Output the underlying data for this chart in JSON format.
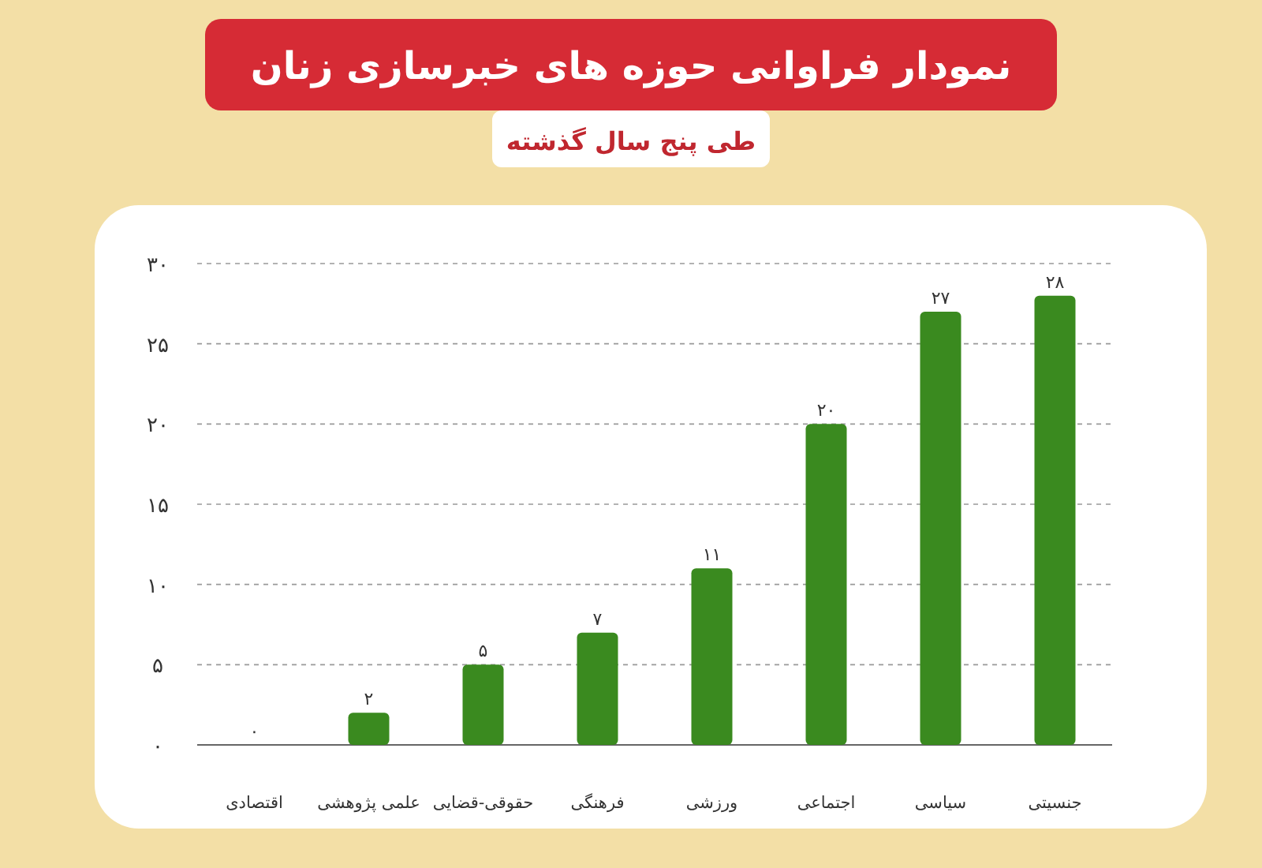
{
  "chart_data": {
    "type": "bar",
    "title": "نمودار فراوانی حوزه های خبرسازی زنان",
    "subtitle": "طی پنج سال گذشته",
    "categories": [
      "اقتصادی",
      "علمی پژوهشی",
      "حقوقی-قضایی",
      "فرهنگی",
      "ورزشی",
      "اجتماعی",
      "سیاسی",
      "جنسیتی"
    ],
    "values": [
      0,
      2,
      5,
      7,
      11,
      20,
      27,
      28
    ],
    "value_labels": [
      "۰",
      "۲",
      "۵",
      "۷",
      "۱۱",
      "۲۰",
      "۲۷",
      "۲۸"
    ],
    "color": "#3a8a1f",
    "ylim": [
      0,
      30
    ],
    "yticks": [
      {
        "value": 0,
        "label": "۰"
      },
      {
        "value": 5,
        "label": "۵"
      },
      {
        "value": 10,
        "label": "۱۰"
      },
      {
        "value": 15,
        "label": "۱۵"
      },
      {
        "value": 20,
        "label": "۲۰"
      },
      {
        "value": 25,
        "label": "۲۵"
      },
      {
        "value": 30,
        "label": "۳۰"
      }
    ],
    "grid": "y"
  }
}
